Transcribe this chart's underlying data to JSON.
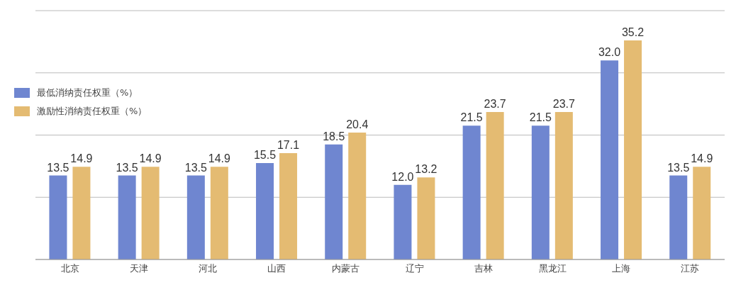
{
  "chart_data": {
    "type": "bar",
    "categories": [
      "北京",
      "天津",
      "河北",
      "山西",
      "内蒙古",
      "辽宁",
      "吉林",
      "黑龙江",
      "上海",
      "江苏"
    ],
    "series": [
      {
        "name": "最低消纳责任权重（%）",
        "color": "#6f86d0",
        "values": [
          13.5,
          13.5,
          13.5,
          15.5,
          18.5,
          12.0,
          21.5,
          21.5,
          32.0,
          13.5
        ],
        "value_labels": [
          "13.5",
          "13.5",
          "13.5",
          "15.5",
          "18.5",
          "12.0",
          "21.5",
          "21.5",
          "32.0",
          "13.5"
        ]
      },
      {
        "name": "激励性消纳责任权重（%）",
        "color": "#e4bb72",
        "values": [
          14.9,
          14.9,
          14.9,
          17.1,
          20.4,
          13.2,
          23.7,
          23.7,
          35.2,
          14.9
        ],
        "value_labels": [
          "14.9",
          "14.9",
          "14.9",
          "17.1",
          "20.4",
          "13.2",
          "23.7",
          "23.7",
          "35.2",
          "14.9"
        ]
      }
    ],
    "ylim": [
      0,
      40
    ],
    "yticks": [
      {
        "value": 0,
        "label": null
      },
      {
        "value": 10,
        "label": null
      },
      {
        "value": 20,
        "label": null
      },
      {
        "value": 30,
        "label": null
      },
      {
        "value": 40,
        "label": null
      }
    ],
    "grid": "y",
    "legend": "top left"
  }
}
